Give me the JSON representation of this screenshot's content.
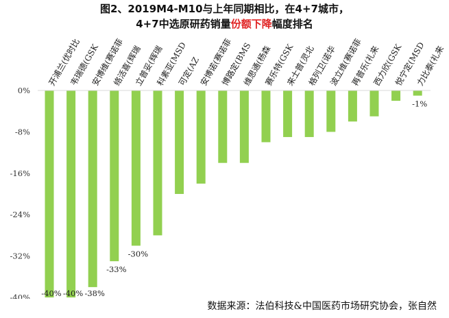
{
  "title": {
    "line1": "图2、2019M4-M10与上年同期相比，在4+7城市，",
    "line2_pre": "4+7中选原研药销量",
    "line2_highlight": "份额下降",
    "line2_post": "幅度排名"
  },
  "source": "数据来源：法伯科技&中国医药市场研究协会，张自然",
  "colors": {
    "bar": "#92d050",
    "highlight": "#e02424"
  },
  "chart_data": {
    "type": "bar",
    "categories": [
      "开浦兰(优时比",
      "韦瑞德(GSK",
      "安博维(赛诺菲",
      "络活喜(辉瑞",
      "立普妥(辉瑞",
      "科素亚(MSD",
      "可定(AZ",
      "安博诺(赛诺菲",
      "博路定(BMS",
      "维思通(杨森",
      "赛乐特(GSK",
      "来士普(灵北",
      "格列卫(诺华",
      "波立维(赛诺菲",
      "再普乐(礼来",
      "西力欣(GSK",
      "悦宁定(MSD",
      "力比泰(礼来"
    ],
    "values": [
      -40,
      -40,
      -38,
      -33,
      -30,
      -28,
      -20,
      -18,
      -14,
      -14,
      -10,
      -9,
      -9,
      -8,
      -6,
      -5,
      -2,
      -1
    ],
    "data_labels": [
      "-40%",
      "-40%",
      "-38%",
      "-33%",
      "-30%",
      null,
      null,
      null,
      null,
      null,
      null,
      null,
      null,
      null,
      null,
      null,
      null,
      "-1%"
    ],
    "yticks": [
      "0%",
      "-8%",
      "-16%",
      "-24%",
      "-32%",
      "-40%"
    ],
    "ytick_values": [
      0,
      -8,
      -16,
      -24,
      -32,
      -40
    ],
    "ylim": [
      -40,
      0
    ],
    "grid": false,
    "legend": "none"
  }
}
